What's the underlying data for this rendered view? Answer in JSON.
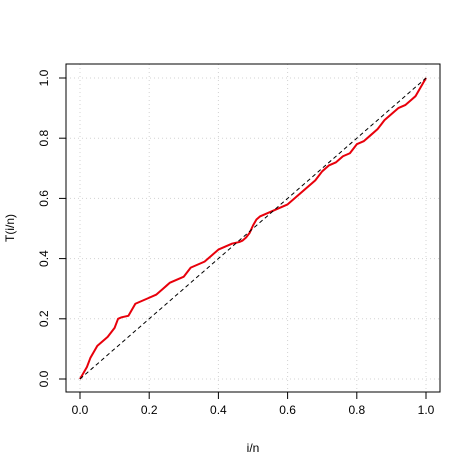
{
  "chart_data": {
    "type": "line",
    "title": "",
    "xlabel": "i/n",
    "ylabel": "T(i/n)",
    "xlim": [
      0,
      1
    ],
    "ylim": [
      0,
      1
    ],
    "xticks": [
      0.0,
      0.2,
      0.4,
      0.6,
      0.8,
      1.0
    ],
    "yticks": [
      0.0,
      0.2,
      0.4,
      0.6,
      0.8,
      1.0
    ],
    "xtick_labels": [
      "0.0",
      "0.2",
      "0.4",
      "0.6",
      "0.8",
      "1.0"
    ],
    "ytick_labels": [
      "0.0",
      "0.2",
      "0.4",
      "0.6",
      "0.8",
      "1.0"
    ],
    "grid": true,
    "series": [
      {
        "style": "solid",
        "color": "#e8000b",
        "x": [
          0.0,
          0.01,
          0.02,
          0.03,
          0.04,
          0.05,
          0.06,
          0.08,
          0.1,
          0.11,
          0.12,
          0.14,
          0.15,
          0.16,
          0.17,
          0.18,
          0.2,
          0.22,
          0.24,
          0.25,
          0.26,
          0.28,
          0.3,
          0.32,
          0.34,
          0.35,
          0.36,
          0.38,
          0.4,
          0.42,
          0.44,
          0.46,
          0.47,
          0.48,
          0.49,
          0.5,
          0.51,
          0.52,
          0.54,
          0.56,
          0.58,
          0.6,
          0.62,
          0.64,
          0.66,
          0.68,
          0.7,
          0.72,
          0.74,
          0.76,
          0.78,
          0.8,
          0.82,
          0.84,
          0.86,
          0.88,
          0.9,
          0.92,
          0.94,
          0.95,
          0.96,
          0.97,
          0.98,
          0.99,
          1.0
        ],
        "y": [
          0.0,
          0.02,
          0.04,
          0.07,
          0.09,
          0.11,
          0.12,
          0.14,
          0.17,
          0.2,
          0.205,
          0.21,
          0.23,
          0.25,
          0.255,
          0.26,
          0.27,
          0.28,
          0.3,
          0.31,
          0.32,
          0.33,
          0.34,
          0.37,
          0.38,
          0.385,
          0.39,
          0.41,
          0.43,
          0.44,
          0.45,
          0.455,
          0.46,
          0.47,
          0.485,
          0.51,
          0.53,
          0.54,
          0.55,
          0.56,
          0.57,
          0.58,
          0.6,
          0.62,
          0.64,
          0.66,
          0.69,
          0.71,
          0.72,
          0.74,
          0.75,
          0.78,
          0.79,
          0.81,
          0.83,
          0.86,
          0.88,
          0.9,
          0.91,
          0.92,
          0.93,
          0.94,
          0.96,
          0.98,
          1.0
        ]
      },
      {
        "style": "dashed",
        "color": "#000000",
        "x": [
          0.0,
          1.0
        ],
        "y": [
          0.0,
          1.0
        ]
      }
    ]
  }
}
